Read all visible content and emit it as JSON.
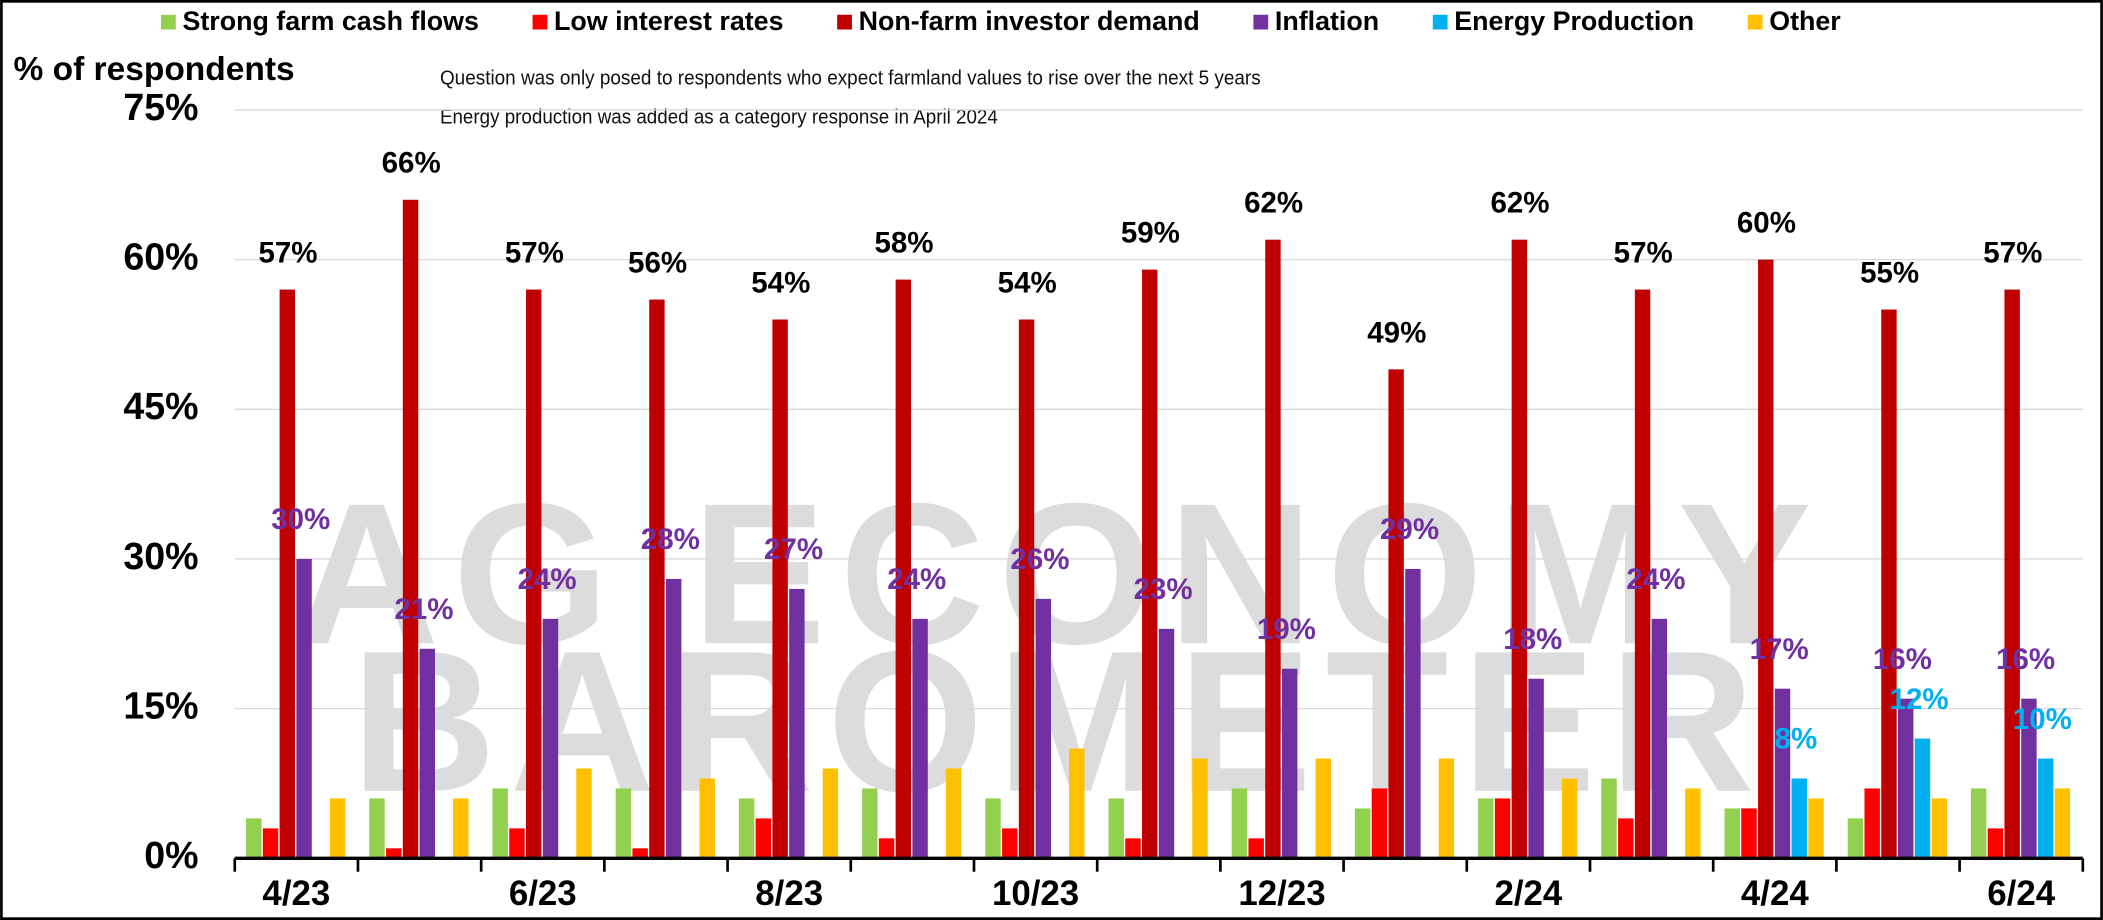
{
  "chart_data": {
    "type": "bar",
    "y_axis_label": "% of respondents",
    "annotations": [
      "Question was only posed to respondents who expect farmland values to rise over the next 5 years",
      "Energy production was added as a category response in April 2024"
    ],
    "watermark": [
      "AG ECONOMY",
      "BAROMETER"
    ],
    "legend": "top",
    "grid": true,
    "categories": [
      "4/23",
      null,
      "6/23",
      null,
      "8/23",
      null,
      "10/23",
      null,
      "12/23",
      null,
      "2/24",
      null,
      "4/24",
      null,
      "6/24"
    ],
    "ylim": [
      0,
      75
    ],
    "yticks": [
      {
        "value": 0,
        "label": "0%"
      },
      {
        "value": 15,
        "label": "15%"
      },
      {
        "value": 30,
        "label": "30%"
      },
      {
        "value": 45,
        "label": "45%"
      },
      {
        "value": 60,
        "label": "60%"
      },
      {
        "value": 75,
        "label": "75%"
      }
    ],
    "series": [
      {
        "name": "Strong farm cash flows",
        "color": "#92d050",
        "values": [
          4,
          6,
          7,
          7,
          6,
          7,
          6,
          6,
          7,
          5,
          6,
          8,
          5,
          4,
          7
        ]
      },
      {
        "name": "Low interest rates",
        "color": "#ff0000",
        "values": [
          3,
          1,
          3,
          1,
          4,
          2,
          3,
          2,
          2,
          7,
          6,
          4,
          5,
          7,
          3
        ]
      },
      {
        "name": "Non-farm investor demand",
        "color": "#c00000",
        "values": [
          57,
          66,
          57,
          56,
          54,
          58,
          54,
          59,
          62,
          49,
          62,
          57,
          60,
          55,
          57
        ],
        "value_labels": [
          "57%",
          "66%",
          "57%",
          "56%",
          "54%",
          "58%",
          "54%",
          "59%",
          "62%",
          "49%",
          "62%",
          "57%",
          "60%",
          "55%",
          "57%"
        ],
        "label_color": "#000000"
      },
      {
        "name": "Inflation",
        "color": "#7030a0",
        "values": [
          30,
          21,
          24,
          28,
          27,
          24,
          26,
          23,
          19,
          29,
          18,
          24,
          17,
          16,
          16
        ],
        "value_labels": [
          "30%",
          "21%",
          "24%",
          "28%",
          "27%",
          "24%",
          "26%",
          "23%",
          "19%",
          "29%",
          "18%",
          "24%",
          "17%",
          "16%",
          "16%"
        ],
        "label_color": "#7030a0"
      },
      {
        "name": "Energy Production",
        "color": "#00b0f0",
        "values": [
          null,
          null,
          null,
          null,
          null,
          null,
          null,
          null,
          null,
          null,
          null,
          null,
          8,
          12,
          10
        ],
        "value_labels": [
          null,
          null,
          null,
          null,
          null,
          null,
          null,
          null,
          null,
          null,
          null,
          null,
          "8%",
          "12%",
          "10%"
        ],
        "label_color": "#00b0f0"
      },
      {
        "name": "Other",
        "color": "#ffc000",
        "values": [
          6,
          6,
          9,
          8,
          9,
          9,
          11,
          10,
          10,
          10,
          8,
          7,
          6,
          6,
          7
        ]
      }
    ]
  }
}
